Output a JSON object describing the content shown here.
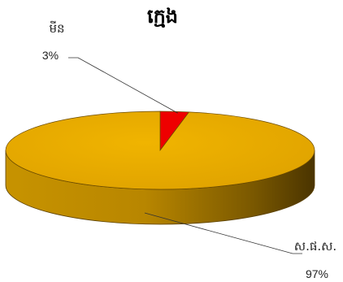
{
  "chart_data": {
    "type": "pie",
    "title": "ក្មេង",
    "slices": [
      {
        "label": "ស.ផ.ស.",
        "value": 97,
        "value_text": "97%",
        "color": "#e5a800"
      },
      {
        "label": "មីន",
        "value": 3,
        "value_text": "3%",
        "color": "#ee0000"
      }
    ],
    "legend": false,
    "style": "3d"
  }
}
